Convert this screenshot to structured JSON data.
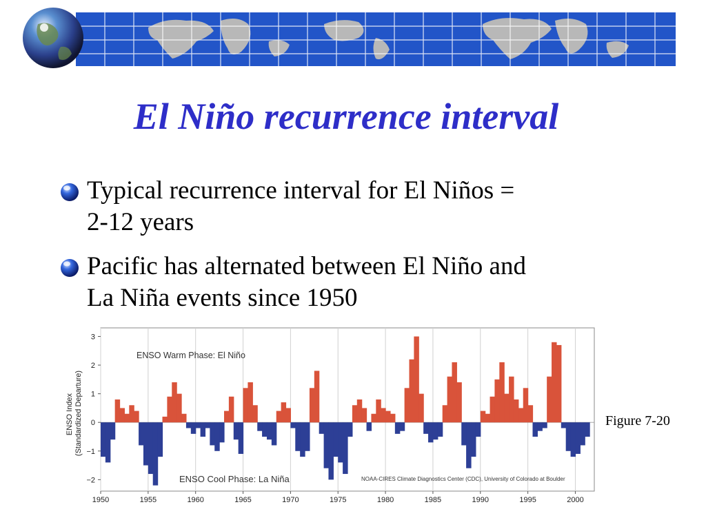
{
  "slide": {
    "title": "El Niño recurrence interval",
    "bullets": [
      {
        "lines": [
          "Typical recurrence interval for El Niños =",
          "2-12 years"
        ]
      },
      {
        "lines": [
          "Pacific has alternated between El Niño and",
          "La Niña events since 1950"
        ]
      }
    ],
    "figure_caption": "Figure 7-20"
  },
  "colors": {
    "title": "#2e2ec8",
    "banner_blue": "#2255c8",
    "land": "#b8b8b8",
    "warm": "#d9533a",
    "cool": "#2d3f96"
  },
  "icons": {
    "globe": "globe-icon",
    "bullet": "blue-sphere-bullet-icon"
  },
  "chart_data": {
    "type": "bar",
    "xlabel": "",
    "ylabel": "ENSO Index (Standardized Departure)",
    "ylabel_lines": [
      "ENSO Index",
      "(Standardized Departure)"
    ],
    "xlim": [
      1950,
      2002
    ],
    "ylim": [
      -2.4,
      3.3
    ],
    "x_ticks": [
      "1950",
      "1955",
      "1960",
      "1965",
      "1970",
      "1975",
      "1980",
      "1985",
      "1990",
      "1995",
      "2000"
    ],
    "y_ticks": [
      "3",
      "2",
      "1",
      "0",
      "−1",
      "−2"
    ],
    "y_tick_values": [
      3,
      2,
      1,
      0,
      -1,
      -2
    ],
    "annotations": {
      "warm": "ENSO Warm Phase: El Niño",
      "cool": "ENSO Cool Phase: La Niña",
      "source": "NOAA-CIRES Climate Diagnostics Center (CDC), University of Colorado at Boulder"
    },
    "grid": true,
    "series": [
      {
        "x": [
          1950.0,
          1950.5,
          1951.0,
          1951.5,
          1952.0,
          1952.5,
          1953.0,
          1953.5,
          1954.0,
          1954.5,
          1955.0,
          1955.5,
          1956.0,
          1956.5,
          1957.0,
          1957.5,
          1958.0,
          1958.5,
          1959.0,
          1959.5,
          1960.0,
          1960.5,
          1961.0,
          1961.5,
          1962.0,
          1962.5,
          1963.0,
          1963.5,
          1964.0,
          1964.5,
          1965.0,
          1965.5,
          1966.0,
          1966.5,
          1967.0,
          1967.5,
          1968.0,
          1968.5,
          1969.0,
          1969.5,
          1970.0,
          1970.5,
          1971.0,
          1971.5,
          1972.0,
          1972.5,
          1973.0,
          1973.5,
          1974.0,
          1974.5,
          1975.0,
          1975.5,
          1976.0,
          1976.5,
          1977.0,
          1977.5,
          1978.0,
          1978.5,
          1979.0,
          1979.5,
          1980.0,
          1980.5,
          1981.0,
          1981.5,
          1982.0,
          1982.5,
          1983.0,
          1983.5,
          1984.0,
          1984.5,
          1985.0,
          1985.5,
          1986.0,
          1986.5,
          1987.0,
          1987.5,
          1988.0,
          1988.5,
          1989.0,
          1989.5,
          1990.0,
          1990.5,
          1991.0,
          1991.5,
          1992.0,
          1992.5,
          1993.0,
          1993.5,
          1994.0,
          1994.5,
          1995.0,
          1995.5,
          1996.0,
          1996.5,
          1997.0,
          1997.5,
          1998.0,
          1998.5,
          1999.0,
          1999.5,
          2000.0,
          2000.5,
          2001.0
        ],
        "y": [
          -1.2,
          -1.4,
          -0.6,
          0.8,
          0.5,
          0.3,
          0.6,
          0.4,
          -0.8,
          -1.5,
          -1.8,
          -2.2,
          -1.2,
          0.2,
          0.9,
          1.4,
          1.0,
          0.3,
          -0.2,
          -0.4,
          -0.2,
          -0.5,
          -0.2,
          -0.8,
          -1.0,
          -0.7,
          0.4,
          0.9,
          -0.6,
          -1.1,
          1.2,
          1.4,
          0.6,
          -0.3,
          -0.5,
          -0.6,
          -0.8,
          0.4,
          0.7,
          0.5,
          -0.2,
          -1.0,
          -1.2,
          -1.0,
          1.2,
          1.8,
          -0.4,
          -1.6,
          -2.0,
          -1.2,
          -1.4,
          -1.8,
          -0.5,
          0.6,
          0.8,
          0.5,
          -0.3,
          0.3,
          0.8,
          0.5,
          0.4,
          0.3,
          -0.4,
          -0.3,
          1.2,
          2.2,
          3.0,
          1.0,
          -0.4,
          -0.7,
          -0.6,
          -0.5,
          0.6,
          1.6,
          2.1,
          1.4,
          -0.8,
          -1.6,
          -1.2,
          -0.5,
          0.4,
          0.3,
          0.9,
          1.5,
          2.1,
          1.0,
          1.6,
          0.8,
          0.5,
          1.2,
          0.6,
          -0.5,
          -0.3,
          -0.2,
          1.6,
          2.8,
          2.7,
          -0.2,
          -1.0,
          -1.2,
          -1.1,
          -0.8,
          -0.5
        ]
      }
    ]
  }
}
